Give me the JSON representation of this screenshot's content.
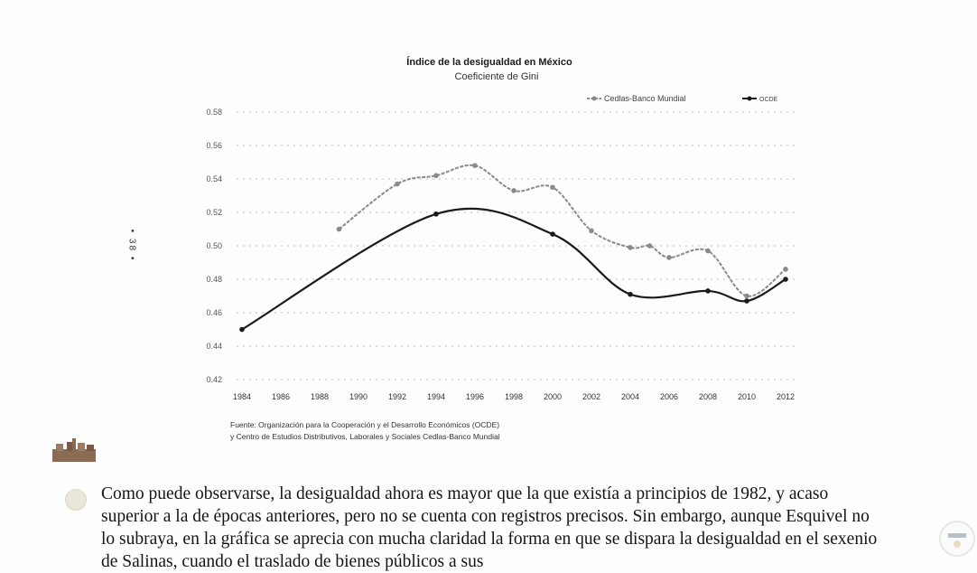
{
  "page": {
    "page_number": "• 38 •",
    "body_text": "Como puede observarse, la desigualdad ahora es mayor que la que existía a principios de 1982, y acaso superior a la de épocas anteriores, pero no se cuenta con registros precisos. Sin embargo, aunque Esquivel no lo subraya, en la gráfica se aprecia con mucha claridad la forma en que se dispara la desigualdad en el sexenio de Salinas, cuando el traslado de bienes públicos a sus"
  },
  "chart_data": {
    "type": "line",
    "title": "Índice de la desigualdad en México",
    "subtitle": "Coeficiente de Gini",
    "xlabel": "",
    "ylabel": "",
    "ylim": [
      0.42,
      0.58
    ],
    "xlim": [
      1984,
      2012
    ],
    "grid": true,
    "legend_position": "top-right",
    "x_ticks": [
      "1984",
      "1986",
      "1988",
      "1990",
      "1992",
      "1994",
      "1996",
      "1998",
      "2000",
      "2002",
      "2004",
      "2006",
      "2008",
      "2010",
      "2012"
    ],
    "y_ticks": [
      "0.58",
      "0.56",
      "0.54",
      "0.52",
      "0.50",
      "0.48",
      "0.46",
      "0.44",
      "0.42"
    ],
    "series": [
      {
        "name": "Cedlas-Banco Mundial",
        "style": "dashed-gray",
        "color": "#8a8a8a",
        "x": [
          1989,
          1992,
          1994,
          1996,
          1998,
          2000,
          2002,
          2004,
          2005,
          2006,
          2008,
          2010,
          2012
        ],
        "values": [
          0.51,
          0.537,
          0.542,
          0.548,
          0.533,
          0.535,
          0.509,
          0.499,
          0.5,
          0.493,
          0.497,
          0.47,
          0.486
        ]
      },
      {
        "name": "OCDE",
        "style": "solid-black",
        "color": "#1a1a1a",
        "x": [
          1984,
          1994,
          2000,
          2004,
          2008,
          2010,
          2012
        ],
        "values": [
          0.45,
          0.519,
          0.507,
          0.471,
          0.473,
          0.467,
          0.48
        ]
      }
    ],
    "source": [
      "Fuente: Organización para la Cooperación y el Desarrollo Económicos (OCDE)",
      "y Centro de Estudios Distributivos, Laborales y Sociales Cedlas-Banco Mundial"
    ]
  }
}
